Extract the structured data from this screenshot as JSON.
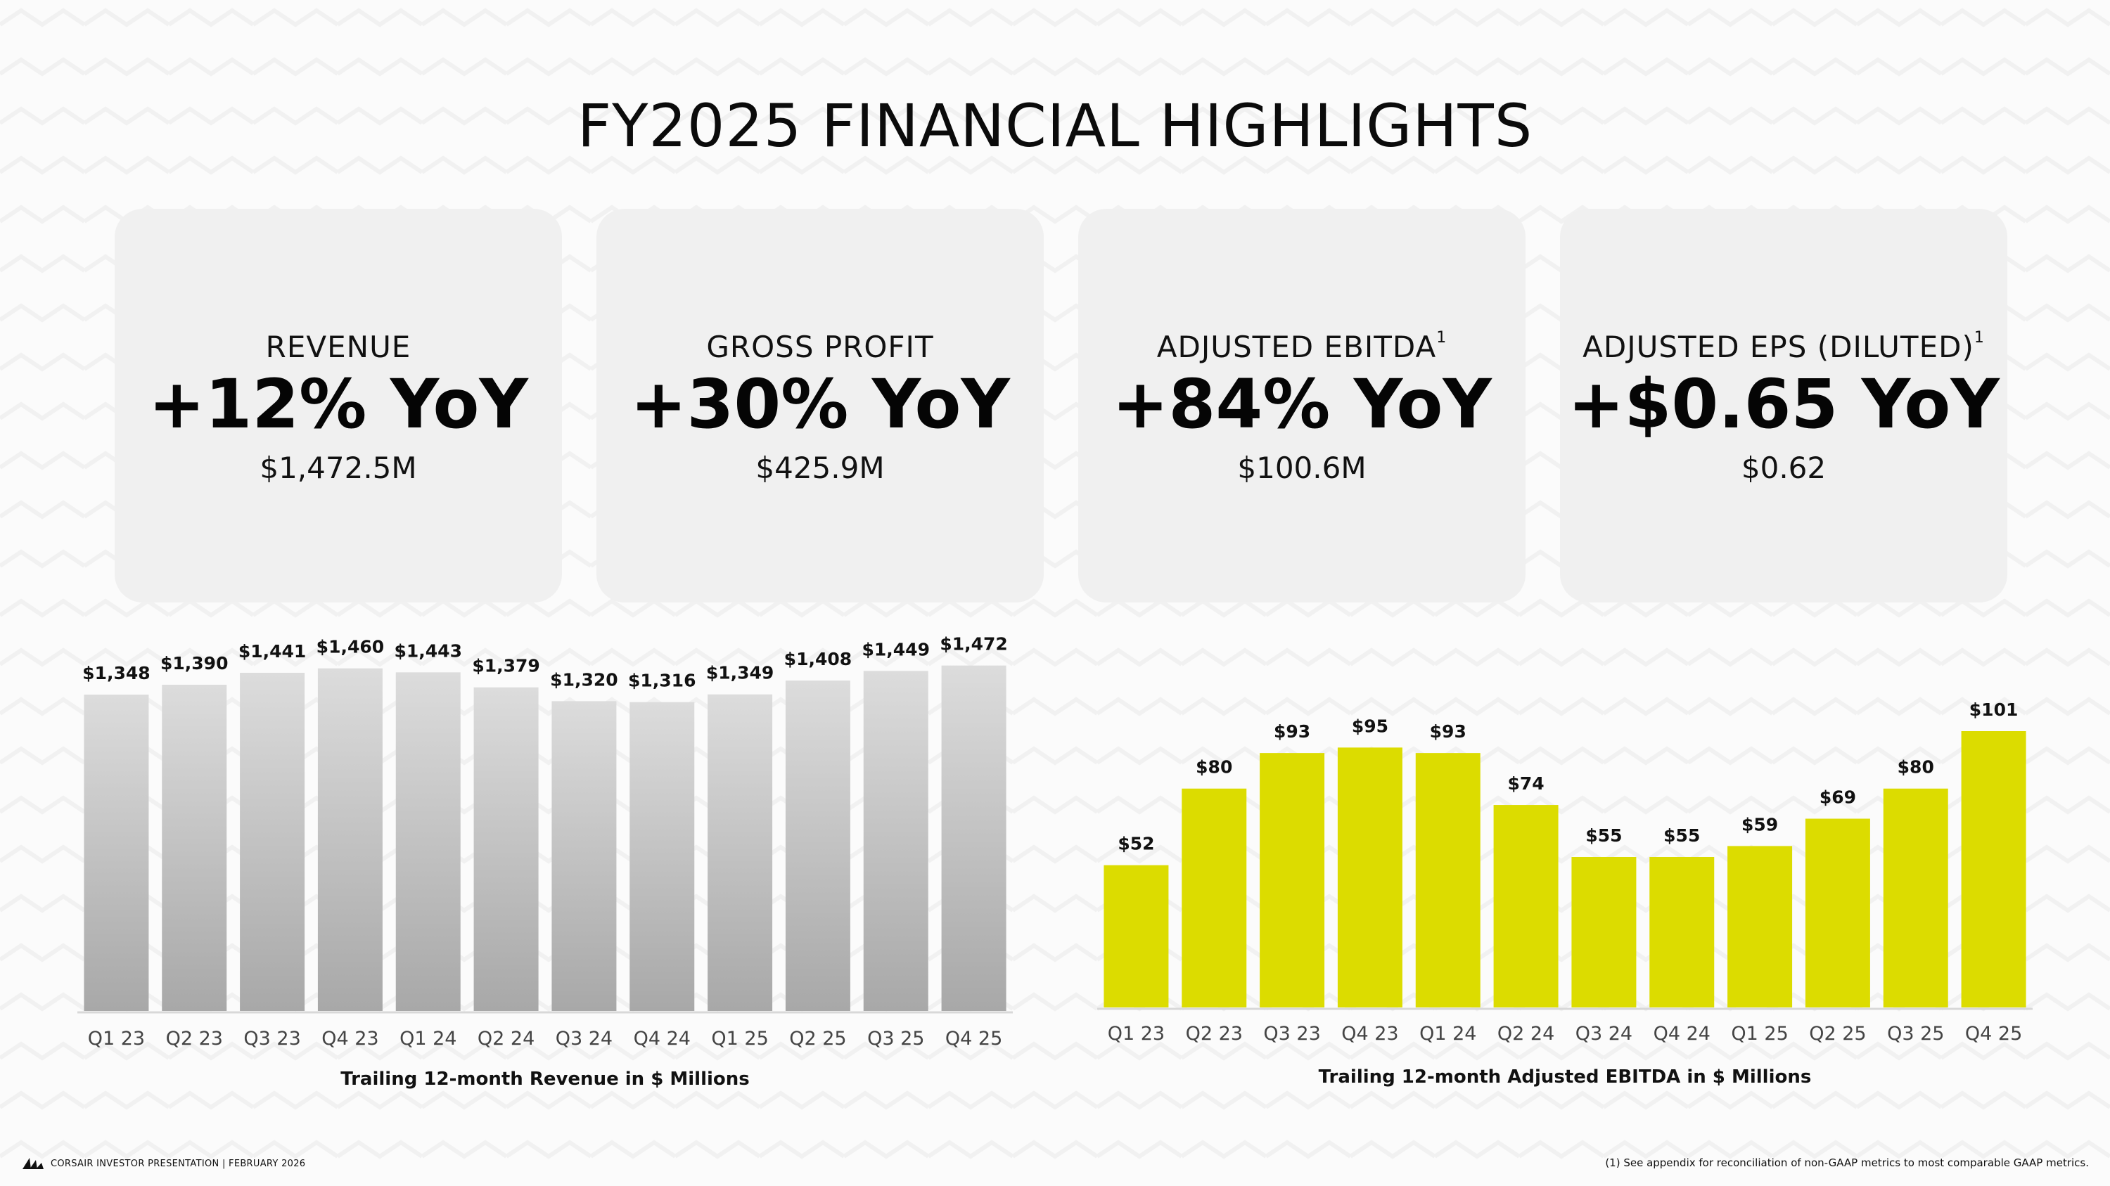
{
  "page": {
    "title": "FY2025 FINANCIAL HIGHLIGHTS",
    "footer_left": "CORSAIR INVESTOR PRESENTATION | FEBRUARY 2026",
    "footer_right": "(1) See appendix for reconciliation of non-GAAP metrics to most comparable GAAP metrics.",
    "logo_icon": "corsair-sails-icon"
  },
  "cards": [
    {
      "label": "REVENUE",
      "footnote": "",
      "headline": "+12% YoY",
      "value": "$1,472.5M"
    },
    {
      "label": "GROSS PROFIT",
      "footnote": "",
      "headline": "+30% YoY",
      "value": "$425.9M"
    },
    {
      "label": "ADJUSTED EBITDA",
      "footnote": "1",
      "headline": "+84% YoY",
      "value": "$100.6M"
    },
    {
      "label": "ADJUSTED EPS (DILUTED)",
      "footnote": "1",
      "headline": "+$0.65 YoY",
      "value": "$0.62"
    }
  ],
  "colors": {
    "card_bg": "#f0f0f0",
    "revenue_bar_top": "#dcdcdc",
    "revenue_bar_bottom": "#a8a8a8",
    "ebitda_bar": "#dcdc00"
  },
  "chart_data": [
    {
      "type": "bar",
      "title": "Trailing 12-month Revenue in $ Millions",
      "categories": [
        "Q1 23",
        "Q2 23",
        "Q3 23",
        "Q4 23",
        "Q1 24",
        "Q2 24",
        "Q3 24",
        "Q4 24",
        "Q1 25",
        "Q2 25",
        "Q3 25",
        "Q4 25"
      ],
      "values": [
        1348,
        1390,
        1441,
        1460,
        1443,
        1379,
        1320,
        1316,
        1349,
        1408,
        1449,
        1472
      ],
      "data_labels": [
        "$1,348",
        "$1,390",
        "$1,441",
        "$1,460",
        "$1,443",
        "$1,379",
        "$1,320",
        "$1,316",
        "$1,349",
        "$1,408",
        "$1,449",
        "$1,472"
      ],
      "ylim": [
        0,
        1480
      ],
      "grid": false,
      "legend": "none",
      "bar_fill": "gradient-gray"
    },
    {
      "type": "bar",
      "title": "Trailing 12-month Adjusted EBITDA in $ Millions",
      "categories": [
        "Q1 23",
        "Q2 23",
        "Q3 23",
        "Q4 23",
        "Q1 24",
        "Q2 24",
        "Q3 24",
        "Q4 24",
        "Q1 25",
        "Q2 25",
        "Q3 25",
        "Q4 25"
      ],
      "values": [
        52,
        80,
        93,
        95,
        93,
        74,
        55,
        55,
        59,
        69,
        80,
        101
      ],
      "data_labels": [
        "$52",
        "$80",
        "$93",
        "$95",
        "$93",
        "$74",
        "$55",
        "$55",
        "$59",
        "$69",
        "$80",
        "$101"
      ],
      "ylim": [
        0,
        101
      ],
      "grid": false,
      "legend": "none",
      "bar_fill": "solid-yellow"
    }
  ]
}
